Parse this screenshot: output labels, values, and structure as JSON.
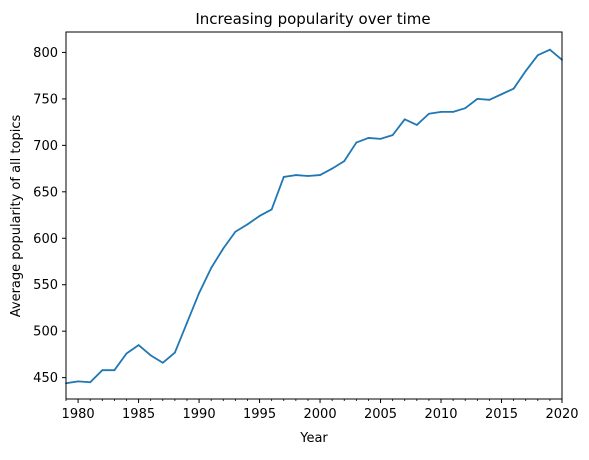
{
  "chart_data": {
    "type": "line",
    "title": "Increasing popularity over time",
    "xlabel": "Year",
    "ylabel": "Average popularity of all topics",
    "xlim": [
      1979,
      2020
    ],
    "ylim": [
      427,
      822
    ],
    "x_ticks": [
      1980,
      1985,
      1990,
      1995,
      2000,
      2005,
      2010,
      2015,
      2020
    ],
    "y_ticks": [
      450,
      500,
      550,
      600,
      650,
      700,
      750,
      800
    ],
    "grid": false,
    "legend": "none",
    "series": [
      {
        "color": "#1f77b4",
        "x": [
          1979,
          1980,
          1981,
          1982,
          1983,
          1984,
          1985,
          1986,
          1987,
          1988,
          1989,
          1990,
          1991,
          1992,
          1993,
          1994,
          1995,
          1996,
          1997,
          1998,
          1999,
          2000,
          2001,
          2002,
          2003,
          2004,
          2005,
          2006,
          2007,
          2008,
          2009,
          2010,
          2011,
          2012,
          2013,
          2014,
          2015,
          2016,
          2017,
          2018,
          2019,
          2020
        ],
        "y": [
          444,
          446,
          445,
          458,
          458,
          476,
          485,
          474,
          466,
          477,
          509,
          541,
          568,
          589,
          607,
          615,
          624,
          631,
          666,
          668,
          667,
          668,
          675,
          683,
          703,
          708,
          707,
          711,
          728,
          722,
          734,
          736,
          736,
          740,
          750,
          749,
          755,
          761,
          780,
          797,
          803,
          792
        ]
      }
    ]
  }
}
